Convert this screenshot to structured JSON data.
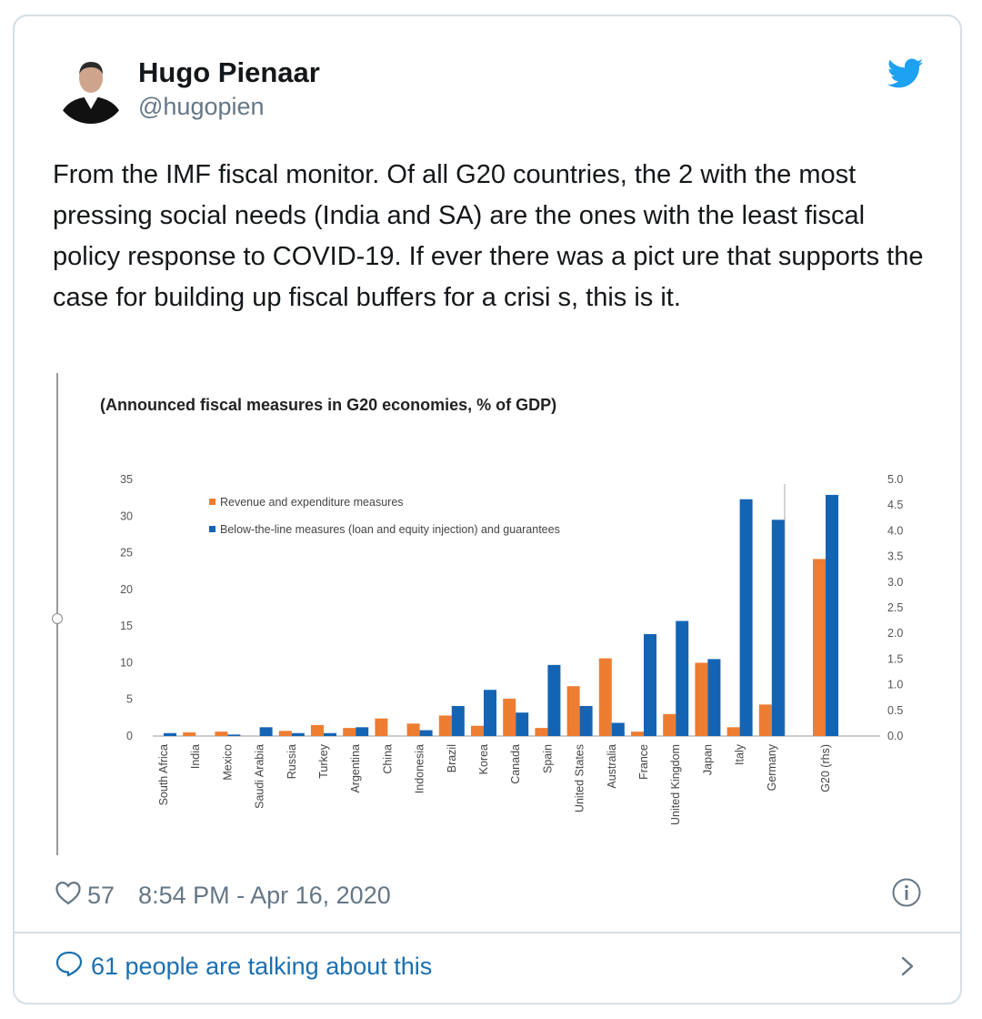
{
  "tweet": {
    "author_name": "Hugo Pienaar",
    "author_handle": "@hugopien",
    "text": "From the IMF fiscal monitor. Of all G20 countries, the 2 with the most pressing social needs (India and SA) are the ones with the least fiscal policy response to COVID-19. If ever there was a pict ure that supports the case for building up fiscal buffers for a crisi s, this is it.",
    "like_count": "57",
    "timestamp": "8:54 PM - Apr 16, 2020",
    "talking_label": "61 people are talking about this"
  },
  "icons": {
    "brand": "twitter-bird-icon",
    "like": "heart-icon",
    "info": "info-icon",
    "reply": "speech-bubble-icon",
    "chevron": "chevron-right-icon"
  },
  "colors": {
    "twitter_blue": "#1da1f2",
    "link_blue": "#1b6fb0",
    "secondary_text": "#657786",
    "border": "#d7dee3",
    "series_orange": "#ed7d31",
    "series_blue": "#1464b4"
  },
  "chart_data": {
    "type": "bar",
    "title": "(Announced fiscal measures in G20 economies, % of GDP)",
    "categories": [
      "South Africa",
      "India",
      "Mexico",
      "Saudi Arabia",
      "Russia",
      "Turkey",
      "Argentina",
      "China",
      "Indonesia",
      "Brazil",
      "Korea",
      "Canada",
      "Spain",
      "United States",
      "Australia",
      "France",
      "United Kingdom",
      "Japan",
      "Italy",
      "Germany",
      "G20 (rhs)"
    ],
    "series": [
      {
        "name": "Revenue and expenditure measures",
        "color": "#ed7d31",
        "values": [
          0,
          0.5,
          0.6,
          0,
          0.7,
          1.5,
          1.1,
          2.4,
          1.7,
          2.8,
          1.4,
          5.1,
          1.1,
          6.8,
          10.6,
          0.6,
          3.0,
          10.0,
          1.2,
          4.3,
          3.45
        ]
      },
      {
        "name": "Below-the-line measures (loan and equity injection) and guarantees",
        "color": "#1464b4",
        "values": [
          0.4,
          0,
          0.2,
          1.2,
          0.4,
          0.4,
          1.2,
          0,
          0.8,
          4.1,
          6.3,
          3.2,
          9.7,
          4.1,
          1.8,
          13.9,
          15.7,
          10.5,
          32.3,
          29.5,
          4.7
        ]
      }
    ],
    "ylim": [
      0,
      35
    ],
    "y_ticks": [
      "0",
      "5",
      "10",
      "15",
      "20",
      "25",
      "30",
      "35"
    ],
    "y2lim": [
      0,
      5.0
    ],
    "y2_ticks": [
      "0.0",
      "0.5",
      "1.0",
      "1.5",
      "2.0",
      "2.5",
      "3.0",
      "3.5",
      "4.0",
      "4.5",
      "5.0"
    ],
    "secondary_axis_categories": [
      "G20 (rhs)"
    ],
    "legend_placement": "top-left",
    "grid": false
  }
}
